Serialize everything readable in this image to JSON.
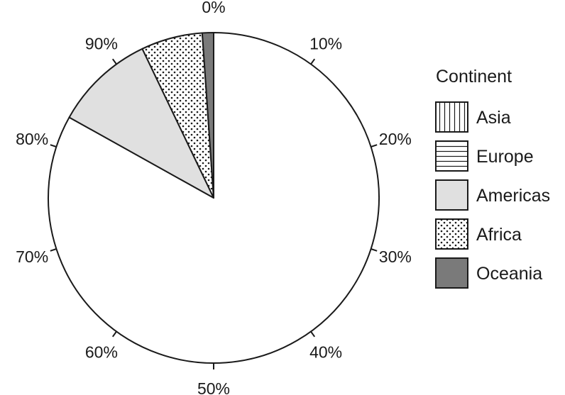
{
  "chart_data": {
    "type": "pie",
    "legend_title": "Continent",
    "legend_position": "right",
    "start": "top",
    "direction": "clockwise",
    "slices": [
      {
        "name": "Asia",
        "value": 0,
        "pattern": "vertical-lines",
        "color": "#ffffff"
      },
      {
        "name": "Europe",
        "value": 0,
        "pattern": "horizontal-lines",
        "color": "#ffffff"
      },
      {
        "name": "Americas",
        "value": 83.1,
        "pattern": "solid",
        "color": "#ffffff"
      },
      {
        "name": "Americas",
        "value": 9.8,
        "pattern": "solid",
        "color": "#e0e0e0"
      },
      {
        "name": "Africa",
        "value": 6.0,
        "pattern": "dots",
        "color": "#ffffff"
      },
      {
        "name": "Oceania",
        "value": 1.1,
        "pattern": "solid",
        "color": "#7a7a7a"
      }
    ],
    "legend": [
      {
        "name": "Asia",
        "pattern": "vertical-lines",
        "color": "#ffffff"
      },
      {
        "name": "Europe",
        "pattern": "horizontal-lines",
        "color": "#ffffff"
      },
      {
        "name": "Americas",
        "pattern": "solid",
        "color": "#e0e0e0"
      },
      {
        "name": "Africa",
        "pattern": "dots",
        "color": "#ffffff"
      },
      {
        "name": "Oceania",
        "pattern": "solid",
        "color": "#7a7a7a"
      }
    ],
    "tick_labels": [
      "0%",
      "10%",
      "20%",
      "30%",
      "40%",
      "50%",
      "60%",
      "70%",
      "80%",
      "90%"
    ]
  }
}
